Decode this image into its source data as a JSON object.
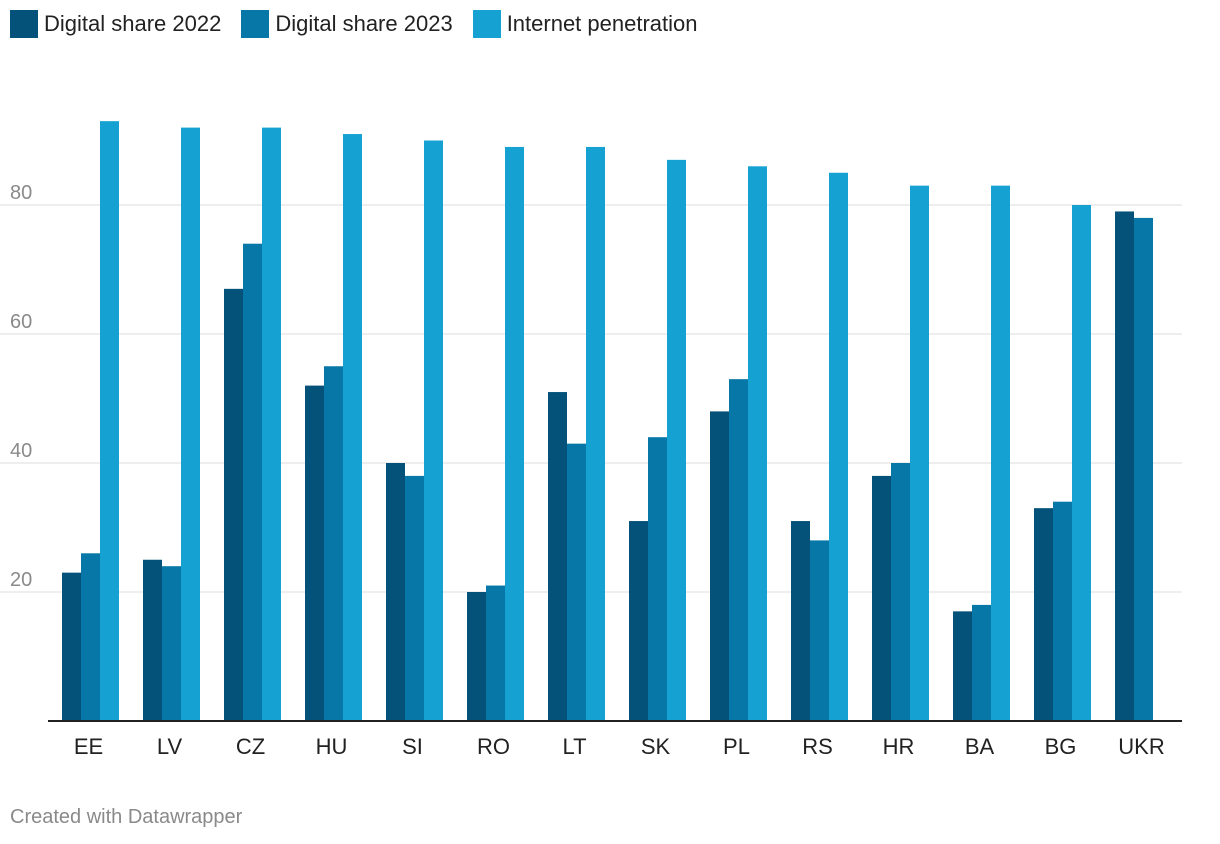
{
  "legend": {
    "items": [
      {
        "label": "Digital share 2022",
        "color": "#04527a"
      },
      {
        "label": "Digital share 2023",
        "color": "#0677a6"
      },
      {
        "label": "Internet penetration",
        "color": "#15a2d2"
      }
    ]
  },
  "footer": {
    "credit": "Created with Datawrapper"
  },
  "chart_data": {
    "type": "bar",
    "categories": [
      "EE",
      "LV",
      "CZ",
      "HU",
      "SI",
      "RO",
      "LT",
      "SK",
      "PL",
      "RS",
      "HR",
      "BA",
      "BG",
      "UKR"
    ],
    "series": [
      {
        "name": "Digital share 2022",
        "color": "#04527a",
        "values": [
          23,
          25,
          67,
          52,
          40,
          20,
          51,
          31,
          48,
          31,
          38,
          17,
          33,
          79
        ]
      },
      {
        "name": "Digital share 2023",
        "color": "#0677a6",
        "values": [
          26,
          24,
          74,
          55,
          38,
          21,
          43,
          44,
          53,
          28,
          40,
          18,
          34,
          78
        ]
      },
      {
        "name": "Internet penetration",
        "color": "#15a2d2",
        "values": [
          93,
          92,
          92,
          91,
          90,
          89,
          89,
          87,
          86,
          85,
          83,
          83,
          80,
          null
        ]
      }
    ],
    "yticks": [
      20,
      40,
      60,
      80
    ],
    "ylim": [
      0,
      100
    ],
    "grid": true,
    "legend_position": "top-left",
    "title": "",
    "xlabel": "",
    "ylabel": ""
  }
}
